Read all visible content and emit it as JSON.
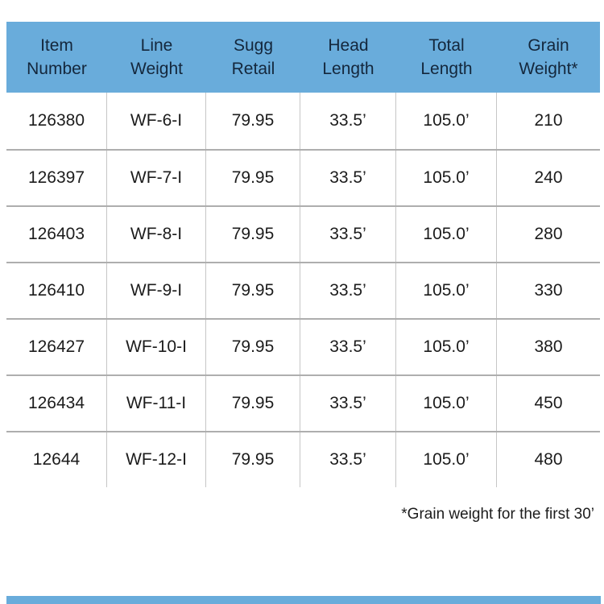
{
  "colors": {
    "header_background": "#69acdb",
    "header_text": "#14273c",
    "body_text": "#1c1c1c",
    "row_divider": "#aeaeae",
    "column_divider": "#c6c6c6"
  },
  "table": {
    "columns": [
      {
        "line1": "Item",
        "line2": "Number"
      },
      {
        "line1": "Line",
        "line2": "Weight"
      },
      {
        "line1": "Sugg",
        "line2": "Retail"
      },
      {
        "line1": "Head",
        "line2": "Length"
      },
      {
        "line1": "Total",
        "line2": "Length"
      },
      {
        "line1": "Grain",
        "line2": "Weight*"
      }
    ]
  },
  "chart_data": {
    "type": "table",
    "title": "",
    "columns": [
      "Item Number",
      "Line Weight",
      "Sugg Retail",
      "Head Length",
      "Total Length",
      "Grain Weight*"
    ],
    "rows": [
      [
        "126380",
        "WF-6-I",
        "79.95",
        "33.5’",
        "105.0’",
        "210"
      ],
      [
        "126397",
        "WF-7-I",
        "79.95",
        "33.5’",
        "105.0’",
        "240"
      ],
      [
        "126403",
        "WF-8-I",
        "79.95",
        "33.5’",
        "105.0’",
        "280"
      ],
      [
        "126410",
        "WF-9-I",
        "79.95",
        "33.5’",
        "105.0’",
        "330"
      ],
      [
        "126427",
        "WF-10-I",
        "79.95",
        "33.5’",
        "105.0’",
        "380"
      ],
      [
        "126434",
        "WF-11-I",
        "79.95",
        "33.5’",
        "105.0’",
        "450"
      ],
      [
        "12644",
        "WF-12-I",
        "79.95",
        "33.5’",
        "105.0’",
        "480"
      ]
    ],
    "footnote": "*Grain weight for the first 30’"
  }
}
